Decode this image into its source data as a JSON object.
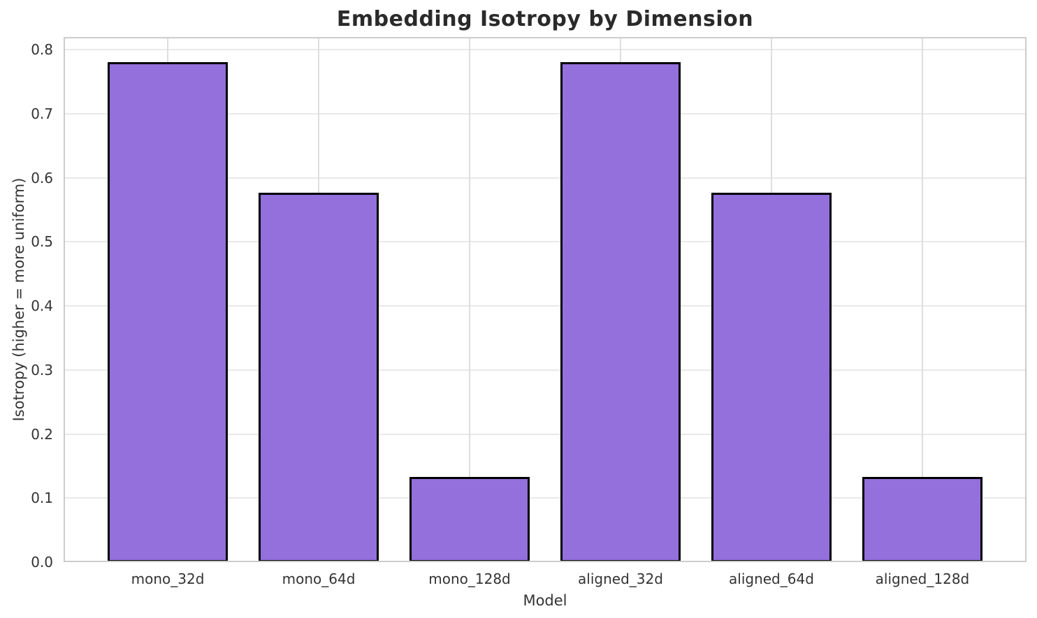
{
  "figure": {
    "background": "#ffffff"
  },
  "chart_data": {
    "type": "bar",
    "title": "Embedding Isotropy by Dimension",
    "xlabel": "Model",
    "ylabel": "Isotropy (higher = more uniform)",
    "categories": [
      "mono_32d",
      "mono_64d",
      "mono_128d",
      "aligned_32d",
      "aligned_64d",
      "aligned_128d"
    ],
    "values": [
      0.781,
      0.577,
      0.133,
      0.781,
      0.577,
      0.133
    ],
    "ylim": [
      0,
      0.82
    ],
    "yticks": [
      0.0,
      0.1,
      0.2,
      0.3,
      0.4,
      0.5,
      0.6,
      0.7,
      0.8
    ],
    "ytick_labels": [
      "0.0",
      "0.1",
      "0.2",
      "0.3",
      "0.4",
      "0.5",
      "0.6",
      "0.7",
      "0.8"
    ],
    "grid": true,
    "legend": null,
    "bar_color": "#9370DB",
    "bar_edge_color": "#000000",
    "grid_color": "#e9e9e9",
    "spine_color": "#cccccc",
    "bar_width_fraction": 0.8,
    "x_margin_units": 0.69
  }
}
